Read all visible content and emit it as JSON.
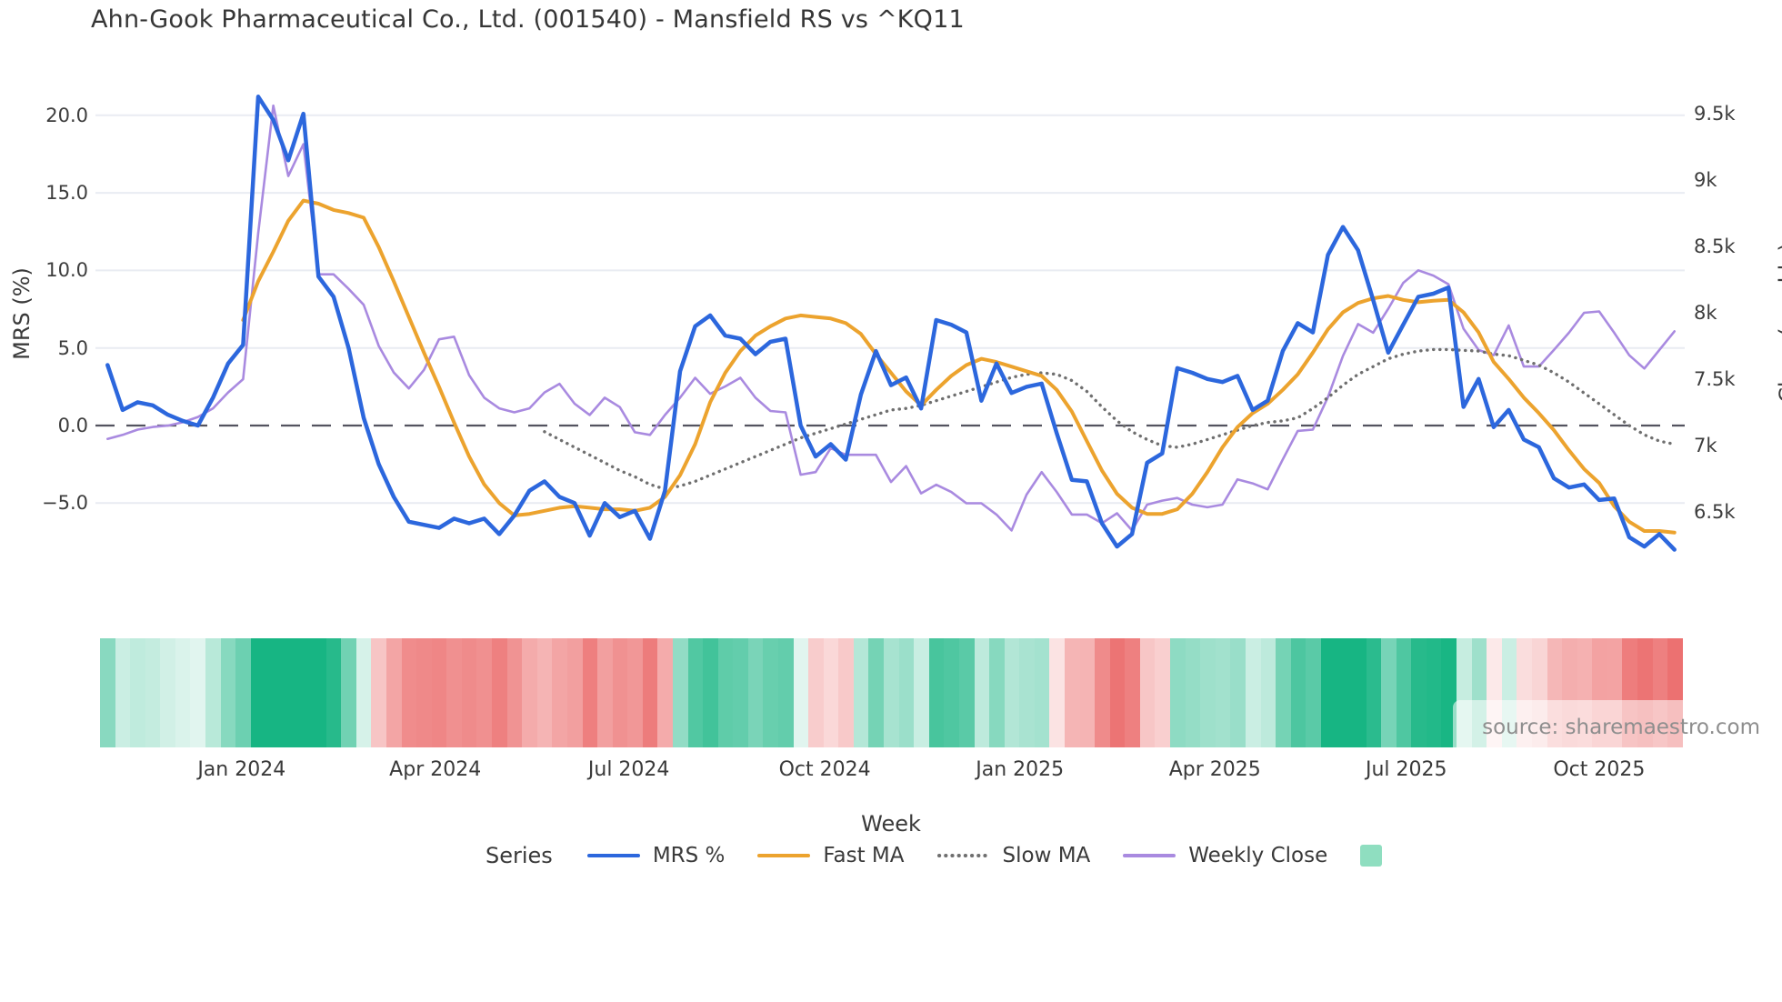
{
  "title": "Ahn-Gook Pharmaceutical Co., Ltd. (001540) - Mansfield RS vs ^KQ11",
  "watermark": {
    "text": "source: sharemaestro.com"
  },
  "colors": {
    "mrs_blue": "#2c67dd",
    "fast_ma_orange": "#eca32e",
    "slow_ma_gray": "#6f6f6f",
    "weekly_close_purple": "#a98ae0",
    "heat_positive_green": "#17b583",
    "heat_negative_red": "#ea6262",
    "gridline": "#e9ecf2",
    "zero_line": "#53535f",
    "legend_swatch": "#8fdec0",
    "text": "#3a3a3a"
  },
  "axes": {
    "left": {
      "label": "MRS (%)",
      "ticks": [
        {
          "value": 20.0,
          "label": "20.0"
        },
        {
          "value": 15.0,
          "label": "15.0"
        },
        {
          "value": 10.0,
          "label": "10.0"
        },
        {
          "value": 5.0,
          "label": "5.0"
        },
        {
          "value": 0.0,
          "label": "0.0"
        },
        {
          "value": -5.0,
          "label": "−5.0"
        }
      ]
    },
    "right": {
      "label": "Close (weekly)",
      "ticks": [
        {
          "value": 9500,
          "label": "9.5k"
        },
        {
          "value": 9000,
          "label": "9k"
        },
        {
          "value": 8500,
          "label": "8.5k"
        },
        {
          "value": 8000,
          "label": "8k"
        },
        {
          "value": 7500,
          "label": "7.5k"
        },
        {
          "value": 7000,
          "label": "7k"
        },
        {
          "value": 6500,
          "label": "6.5k"
        }
      ]
    },
    "x": {
      "label": "Week",
      "ticks": [
        {
          "week": 9.4,
          "label": "Jan 2024"
        },
        {
          "week": 22.25,
          "label": "Apr 2024"
        },
        {
          "week": 35.1,
          "label": "Jul 2024"
        },
        {
          "week": 48.1,
          "label": "Oct 2024"
        },
        {
          "week": 61.05,
          "label": "Jan 2025"
        },
        {
          "week": 74.0,
          "label": "Apr 2025"
        },
        {
          "week": 86.7,
          "label": "Jul 2025"
        },
        {
          "week": 99.5,
          "label": "Oct 2025"
        }
      ]
    }
  },
  "legend": {
    "title": "Series",
    "items": [
      {
        "id": "mrs",
        "label": "MRS %",
        "color": "#2c67dd",
        "style": "solid"
      },
      {
        "id": "fast",
        "label": "Fast MA",
        "color": "#eca32e",
        "style": "solid"
      },
      {
        "id": "slow",
        "label": "Slow MA",
        "color": "#6f6f6f",
        "style": "dotted"
      },
      {
        "id": "close",
        "label": "Weekly Close",
        "color": "#a98ae0",
        "style": "solid"
      },
      {
        "id": "heat",
        "label": "",
        "color": "#8fdec0",
        "style": "swatch"
      }
    ]
  },
  "chart_data": {
    "type": "line",
    "title": "Ahn-Gook Pharmaceutical Co., Ltd. (001540) - Mansfield RS vs ^KQ11",
    "xlabel": "Week",
    "ylabel_left": "MRS (%)",
    "ylabel_right": "Close (weekly)",
    "weeks": 105,
    "zero_line": 0.0,
    "grid": "horizontal-only",
    "legend_position": "bottom-center",
    "series": [
      {
        "name": "MRS %",
        "axis": "left",
        "style": "solid",
        "color": "#2c67dd",
        "width": 4.5,
        "values": [
          3.9,
          1.0,
          1.5,
          1.3,
          0.7,
          0.3,
          0.0,
          1.8,
          4.0,
          5.2,
          21.2,
          19.7,
          17.1,
          20.1,
          9.6,
          8.3,
          5.0,
          0.5,
          -2.5,
          -4.6,
          -6.2,
          -6.4,
          -6.6,
          -6.0,
          -6.3,
          -6.0,
          -7.0,
          -5.8,
          -4.2,
          -3.6,
          -4.6,
          -5.0,
          -7.1,
          -5.0,
          -5.9,
          -5.5,
          -7.3,
          -4.2,
          3.5,
          6.4,
          7.1,
          5.8,
          5.6,
          4.6,
          5.4,
          5.6,
          0.0,
          -2.0,
          -1.2,
          -2.2,
          2.0,
          4.8,
          2.6,
          3.1,
          1.1,
          6.8,
          6.5,
          6.0,
          1.6,
          4.0,
          2.1,
          2.5,
          2.7,
          -0.5,
          -3.5,
          -3.6,
          -6.3,
          -7.8,
          -7.0,
          -2.4,
          -1.8,
          3.7,
          3.4,
          3.0,
          2.8,
          3.2,
          1.0,
          1.6,
          4.8,
          6.6,
          6.0,
          11.0,
          12.8,
          11.3,
          8.1,
          4.7,
          6.5,
          8.3,
          8.5,
          8.9,
          1.2,
          3.0,
          -0.1,
          1.0,
          -0.9,
          -1.4,
          -3.4,
          -4.0,
          -3.8,
          -4.8,
          -4.7,
          -7.2,
          -7.8,
          -7.0,
          -8.0
        ]
      },
      {
        "name": "Fast MA",
        "axis": "left",
        "style": "solid",
        "color": "#eca32e",
        "width": 4,
        "values": [
          null,
          null,
          null,
          null,
          null,
          null,
          null,
          null,
          null,
          6.8,
          9.3,
          11.2,
          13.2,
          14.5,
          14.3,
          13.9,
          13.7,
          13.4,
          11.5,
          9.3,
          7.0,
          4.7,
          2.5,
          0.2,
          -2.0,
          -3.8,
          -5.0,
          -5.8,
          -5.7,
          -5.5,
          -5.3,
          -5.2,
          -5.3,
          -5.4,
          -5.4,
          -5.5,
          -5.3,
          -4.6,
          -3.2,
          -1.2,
          1.5,
          3.4,
          4.8,
          5.8,
          6.4,
          6.9,
          7.1,
          7.0,
          6.9,
          6.6,
          5.9,
          4.6,
          3.4,
          2.2,
          1.3,
          2.3,
          3.2,
          3.9,
          4.3,
          4.1,
          3.8,
          3.5,
          3.2,
          2.3,
          0.9,
          -1.0,
          -2.9,
          -4.4,
          -5.3,
          -5.7,
          -5.7,
          -5.4,
          -4.4,
          -3.0,
          -1.4,
          -0.1,
          0.8,
          1.4,
          2.3,
          3.3,
          4.7,
          6.2,
          7.3,
          7.9,
          8.2,
          8.35,
          8.1,
          7.95,
          8.05,
          8.1,
          7.3,
          6.0,
          4.1,
          3.0,
          1.8,
          0.8,
          -0.3,
          -1.6,
          -2.8,
          -3.7,
          -5.2,
          -6.2,
          -6.8,
          -6.8,
          -6.9
        ]
      },
      {
        "name": "Slow MA",
        "axis": "left",
        "style": "dotted",
        "color": "#6f6f6f",
        "width": 3.4,
        "values": [
          null,
          null,
          null,
          null,
          null,
          null,
          null,
          null,
          null,
          null,
          null,
          null,
          null,
          null,
          null,
          null,
          null,
          null,
          null,
          null,
          null,
          null,
          null,
          null,
          null,
          null,
          null,
          null,
          null,
          -0.4,
          -0.9,
          -1.4,
          -1.9,
          -2.4,
          -2.9,
          -3.3,
          -3.8,
          -4.1,
          -3.9,
          -3.6,
          -3.2,
          -2.8,
          -2.4,
          -2.0,
          -1.6,
          -1.2,
          -0.8,
          -0.5,
          -0.2,
          0.1,
          0.4,
          0.7,
          1.0,
          1.1,
          1.3,
          1.6,
          1.9,
          2.2,
          2.5,
          2.8,
          3.1,
          3.3,
          3.4,
          3.3,
          2.9,
          2.2,
          1.2,
          0.3,
          -0.4,
          -0.9,
          -1.3,
          -1.4,
          -1.2,
          -0.9,
          -0.6,
          -0.3,
          0.0,
          0.2,
          0.3,
          0.5,
          1.1,
          1.8,
          2.6,
          3.3,
          3.8,
          4.3,
          4.6,
          4.8,
          4.9,
          4.9,
          4.85,
          4.8,
          4.6,
          4.5,
          4.2,
          3.9,
          3.4,
          2.8,
          2.1,
          1.4,
          0.7,
          0.0,
          -0.6,
          -1.0,
          -1.2
        ]
      },
      {
        "name": "Weekly Close",
        "axis": "right",
        "style": "solid",
        "color": "#a98ae0",
        "width": 2.6,
        "values": [
          7050,
          7080,
          7120,
          7140,
          7150,
          7175,
          7215,
          7280,
          7400,
          7500,
          8600,
          9560,
          9030,
          9270,
          8290,
          8290,
          8180,
          8060,
          7750,
          7550,
          7430,
          7570,
          7800,
          7820,
          7530,
          7360,
          7280,
          7250,
          7280,
          7400,
          7465,
          7315,
          7230,
          7360,
          7290,
          7100,
          7080,
          7230,
          7360,
          7510,
          7390,
          7445,
          7510,
          7360,
          7260,
          7250,
          6780,
          6800,
          6980,
          6930,
          6930,
          6930,
          6725,
          6845,
          6640,
          6705,
          6650,
          6565,
          6565,
          6480,
          6360,
          6630,
          6800,
          6650,
          6480,
          6480,
          6415,
          6490,
          6360,
          6555,
          6585,
          6605,
          6555,
          6535,
          6555,
          6745,
          6715,
          6670,
          6895,
          7110,
          7120,
          7365,
          7675,
          7915,
          7850,
          8030,
          8225,
          8320,
          8280,
          8215,
          7880,
          7720,
          7680,
          7905,
          7595,
          7595,
          7720,
          7850,
          8000,
          8010,
          7850,
          7680,
          7580,
          7720,
          7860
        ]
      }
    ],
    "heatmap": {
      "type": "heatmap-strip",
      "derived_from": "MRS %",
      "positive_color": "#17b583",
      "negative_color": "#ea6262",
      "scale_max": 9,
      "min_intensity": 0.13
    }
  }
}
